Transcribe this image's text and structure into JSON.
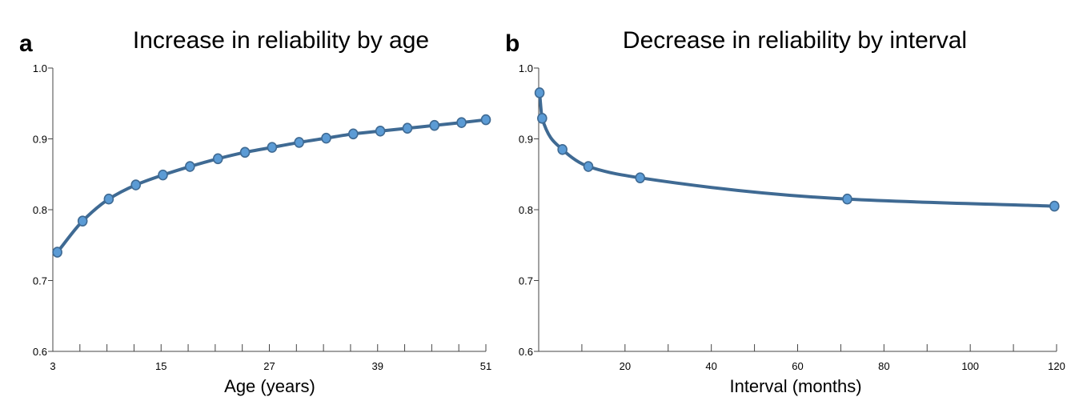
{
  "chart_data": [
    {
      "type": "line",
      "panel": "a",
      "title": "Increase in reliability by age",
      "xlabel": "Age (years)",
      "ylabel": "",
      "xlim": [
        3,
        51
      ],
      "ylim": [
        0.6,
        1.0
      ],
      "x_ticks": [
        3,
        6,
        9,
        12,
        15,
        18,
        21,
        24,
        27,
        30,
        33,
        36,
        39,
        42,
        45,
        48,
        51
      ],
      "x_tick_labels": [
        "3",
        "15",
        "27",
        "39",
        "51"
      ],
      "x_labeled_values": [
        3,
        15,
        27,
        39,
        51
      ],
      "y_ticks": [
        0.6,
        0.7,
        0.8,
        0.9,
        1.0
      ],
      "y_tick_labels": [
        "0.6",
        "0.7",
        "0.8",
        "0.9",
        "1.0"
      ],
      "series": [
        {
          "x": [
            3.5,
            6.3,
            9.2,
            12.2,
            15.2,
            18.2,
            21.3,
            24.3,
            27.3,
            30.3,
            33.3,
            36.3,
            39.3,
            42.3,
            45.3,
            48.3,
            51.0
          ],
          "y": [
            0.74,
            0.784,
            0.815,
            0.835,
            0.849,
            0.861,
            0.872,
            0.881,
            0.888,
            0.895,
            0.901,
            0.907,
            0.911,
            0.915,
            0.919,
            0.923,
            0.927
          ]
        }
      ],
      "grid": false,
      "colors": {
        "line": "#3f6a93",
        "marker": "#5b9bd5"
      }
    },
    {
      "type": "line",
      "panel": "b",
      "title": "Decrease in reliability by interval",
      "xlabel": "Interval (months)",
      "ylabel": "",
      "xlim": [
        0,
        120
      ],
      "ylim": [
        0.6,
        1.0
      ],
      "x_ticks": [
        0,
        10,
        20,
        30,
        40,
        50,
        60,
        70,
        80,
        90,
        100,
        110,
        120
      ],
      "x_tick_labels": [
        "20",
        "40",
        "60",
        "80",
        "100",
        "120"
      ],
      "x_labeled_values": [
        20,
        40,
        60,
        80,
        100,
        120
      ],
      "y_ticks": [
        0.6,
        0.7,
        0.8,
        0.9,
        1.0
      ],
      "y_tick_labels": [
        "0.6",
        "0.7",
        "0.8",
        "0.9",
        "1.0"
      ],
      "series": [
        {
          "x": [
            0.2,
            0.8,
            5.5,
            11.5,
            23.5,
            71.5,
            119.5
          ],
          "y": [
            0.965,
            0.929,
            0.885,
            0.861,
            0.845,
            0.815,
            0.805
          ]
        }
      ],
      "grid": false,
      "colors": {
        "line": "#3f6a93",
        "marker": "#5b9bd5"
      }
    }
  ]
}
